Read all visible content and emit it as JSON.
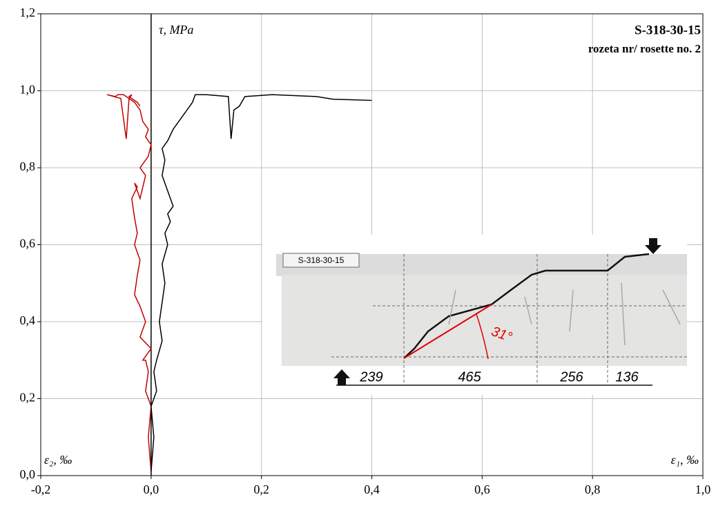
{
  "chart_data": {
    "type": "line",
    "title": "S-318-30-15",
    "subtitle": "rozeta nr/ rosette no. 2",
    "y_label": "τ, MPa",
    "series": [
      {
        "name": "ε₂, ‰",
        "color": "#c00000",
        "x": [
          0.0,
          -0.005,
          0.0,
          -0.01,
          -0.005,
          -0.01,
          -0.015,
          0.0,
          -0.02,
          -0.01,
          -0.02,
          -0.03,
          -0.025,
          -0.02,
          -0.03,
          -0.025,
          -0.03,
          -0.035,
          -0.025,
          -0.03,
          -0.02,
          -0.01,
          -0.02,
          -0.005,
          0.0,
          -0.01,
          -0.005,
          -0.015,
          -0.02,
          -0.03,
          -0.04,
          -0.045,
          -0.05,
          -0.06,
          -0.065,
          -0.08,
          -0.055,
          -0.045,
          -0.04,
          -0.035,
          -0.04,
          -0.025,
          -0.02
        ],
        "values": [
          0.01,
          0.1,
          0.18,
          0.22,
          0.27,
          0.3,
          0.3,
          0.33,
          0.36,
          0.4,
          0.44,
          0.47,
          0.52,
          0.56,
          0.6,
          0.63,
          0.67,
          0.72,
          0.75,
          0.76,
          0.72,
          0.78,
          0.8,
          0.83,
          0.86,
          0.88,
          0.9,
          0.92,
          0.95,
          0.97,
          0.98,
          0.985,
          0.99,
          0.99,
          0.985,
          0.99,
          0.98,
          0.875,
          0.98,
          0.99,
          0.985,
          0.97,
          0.96
        ]
      },
      {
        "name": "ε₁, ‰",
        "color": "#000000",
        "x": [
          0.0,
          0.005,
          0.0,
          0.01,
          0.005,
          0.01,
          0.02,
          0.015,
          0.02,
          0.025,
          0.02,
          0.03,
          0.025,
          0.035,
          0.03,
          0.04,
          0.03,
          0.02,
          0.025,
          0.02,
          0.03,
          0.04,
          0.05,
          0.06,
          0.065,
          0.07,
          0.075,
          0.08,
          0.1,
          0.14,
          0.145,
          0.15,
          0.16,
          0.17,
          0.22,
          0.3,
          0.33,
          0.4
        ],
        "values": [
          0.01,
          0.1,
          0.18,
          0.22,
          0.27,
          0.3,
          0.35,
          0.4,
          0.45,
          0.5,
          0.55,
          0.6,
          0.63,
          0.66,
          0.68,
          0.7,
          0.74,
          0.78,
          0.82,
          0.85,
          0.87,
          0.9,
          0.92,
          0.94,
          0.95,
          0.96,
          0.97,
          0.99,
          0.99,
          0.985,
          0.875,
          0.95,
          0.96,
          0.985,
          0.99,
          0.985,
          0.978,
          0.975
        ]
      }
    ],
    "xlim": [
      -0.2,
      1.0
    ],
    "xticks": [
      {
        "value": -0.2,
        "label": "-0,2"
      },
      {
        "value": 0.0,
        "label": "0,0"
      },
      {
        "value": 0.2,
        "label": "0,2"
      },
      {
        "value": 0.4,
        "label": "0,4"
      },
      {
        "value": 0.6,
        "label": "0,6"
      },
      {
        "value": 0.8,
        "label": "0,8"
      },
      {
        "value": 1.0,
        "label": "1,0"
      }
    ],
    "ylim": [
      0,
      1.2
    ],
    "yticks": [
      {
        "value": 0,
        "label": "0,0"
      },
      {
        "value": 0.2,
        "label": "0,2"
      },
      {
        "value": 0.4,
        "label": "0,4"
      },
      {
        "value": 0.6,
        "label": "0,6"
      },
      {
        "value": 0.8,
        "label": "0,8"
      },
      {
        "value": 1.0,
        "label": "1,0"
      },
      {
        "value": 1.2,
        "label": "1,2"
      }
    ],
    "grid": true,
    "inset": {
      "label": "S-318-30-15",
      "dimensions": [
        "239",
        "465",
        "256",
        "136"
      ],
      "angle": "31°"
    }
  }
}
